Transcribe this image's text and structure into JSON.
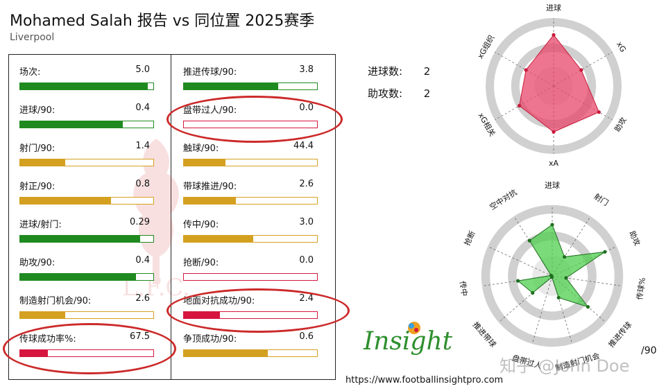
{
  "header": {
    "title": "Mohamed Salah 报告 vs 同位置 2025赛季",
    "team": "Liverpool"
  },
  "colors": {
    "green": "#1f8a1f",
    "gold": "#d4a020",
    "red": "#d6163f",
    "circle": "#cc2a2a",
    "radar_red_fill": "#e8476a",
    "radar_green_fill": "#4fcf4f"
  },
  "stats": {
    "left": [
      {
        "label": "场次:",
        "value": "5.0",
        "pct": 0.96,
        "color": "green"
      },
      {
        "label": "进球/90:",
        "value": "0.4",
        "pct": 0.77,
        "color": "green"
      },
      {
        "label": "射门/90:",
        "value": "1.4",
        "pct": 0.34,
        "color": "gold"
      },
      {
        "label": "射正/90:",
        "value": "0.8",
        "pct": 0.68,
        "color": "gold"
      },
      {
        "label": "进球/射门:",
        "value": "0.29",
        "pct": 0.9,
        "color": "green"
      },
      {
        "label": "助攻/90:",
        "value": "0.4",
        "pct": 0.87,
        "color": "green"
      },
      {
        "label": "制造射门机会/90:",
        "value": "2.6",
        "pct": 0.34,
        "color": "gold"
      },
      {
        "label": "传球成功率%:",
        "value": "67.5",
        "pct": 0.21,
        "color": "red"
      }
    ],
    "right": [
      {
        "label": "推进传球/90:",
        "value": "3.8",
        "pct": 0.71,
        "color": "green"
      },
      {
        "label": "盘带过人/90:",
        "value": "0.0",
        "pct": 0.0,
        "color": "red"
      },
      {
        "label": "触球/90:",
        "value": "44.4",
        "pct": 0.31,
        "color": "gold"
      },
      {
        "label": "带球推进/90:",
        "value": "2.6",
        "pct": 0.39,
        "color": "gold"
      },
      {
        "label": "传中/90:",
        "value": "3.0",
        "pct": 0.52,
        "color": "gold"
      },
      {
        "label": "抢断/90:",
        "value": "0.0",
        "pct": 0.0,
        "color": "red"
      },
      {
        "label": "地面对抗成功/90:",
        "value": "2.4",
        "pct": 0.27,
        "color": "red"
      },
      {
        "label": "争顶成功/90:",
        "value": "0.6",
        "pct": 0.63,
        "color": "gold"
      }
    ]
  },
  "summary": [
    {
      "label": "进球数:",
      "value": "2"
    },
    {
      "label": "助攻数:",
      "value": "2"
    }
  ],
  "chart_data": [
    {
      "type": "radar",
      "axes": [
        "进球",
        "xG",
        "助攻",
        "xA",
        "xG相关",
        "xG组织"
      ],
      "values": [
        0.8,
        0.5,
        0.82,
        0.72,
        0.62,
        0.5
      ],
      "rmax": 1,
      "grid": true
    },
    {
      "type": "radar",
      "axes": [
        "进球",
        "射门",
        "助攻",
        "传球%",
        "推进传球",
        "制造射门机会",
        "盘带过人",
        "推进带球",
        "传中",
        "抢断",
        "空中对抗"
      ],
      "values": [
        0.77,
        0.34,
        0.87,
        0.21,
        0.71,
        0.34,
        0.02,
        0.39,
        0.52,
        0.02,
        0.63
      ],
      "rmax": 1,
      "grid": true
    }
  ],
  "footer": {
    "url": "https://www.footballinsightpro.com",
    "logo_text": "Insight",
    "per90": "/90",
    "watermark": "知乎 @John Doe"
  }
}
